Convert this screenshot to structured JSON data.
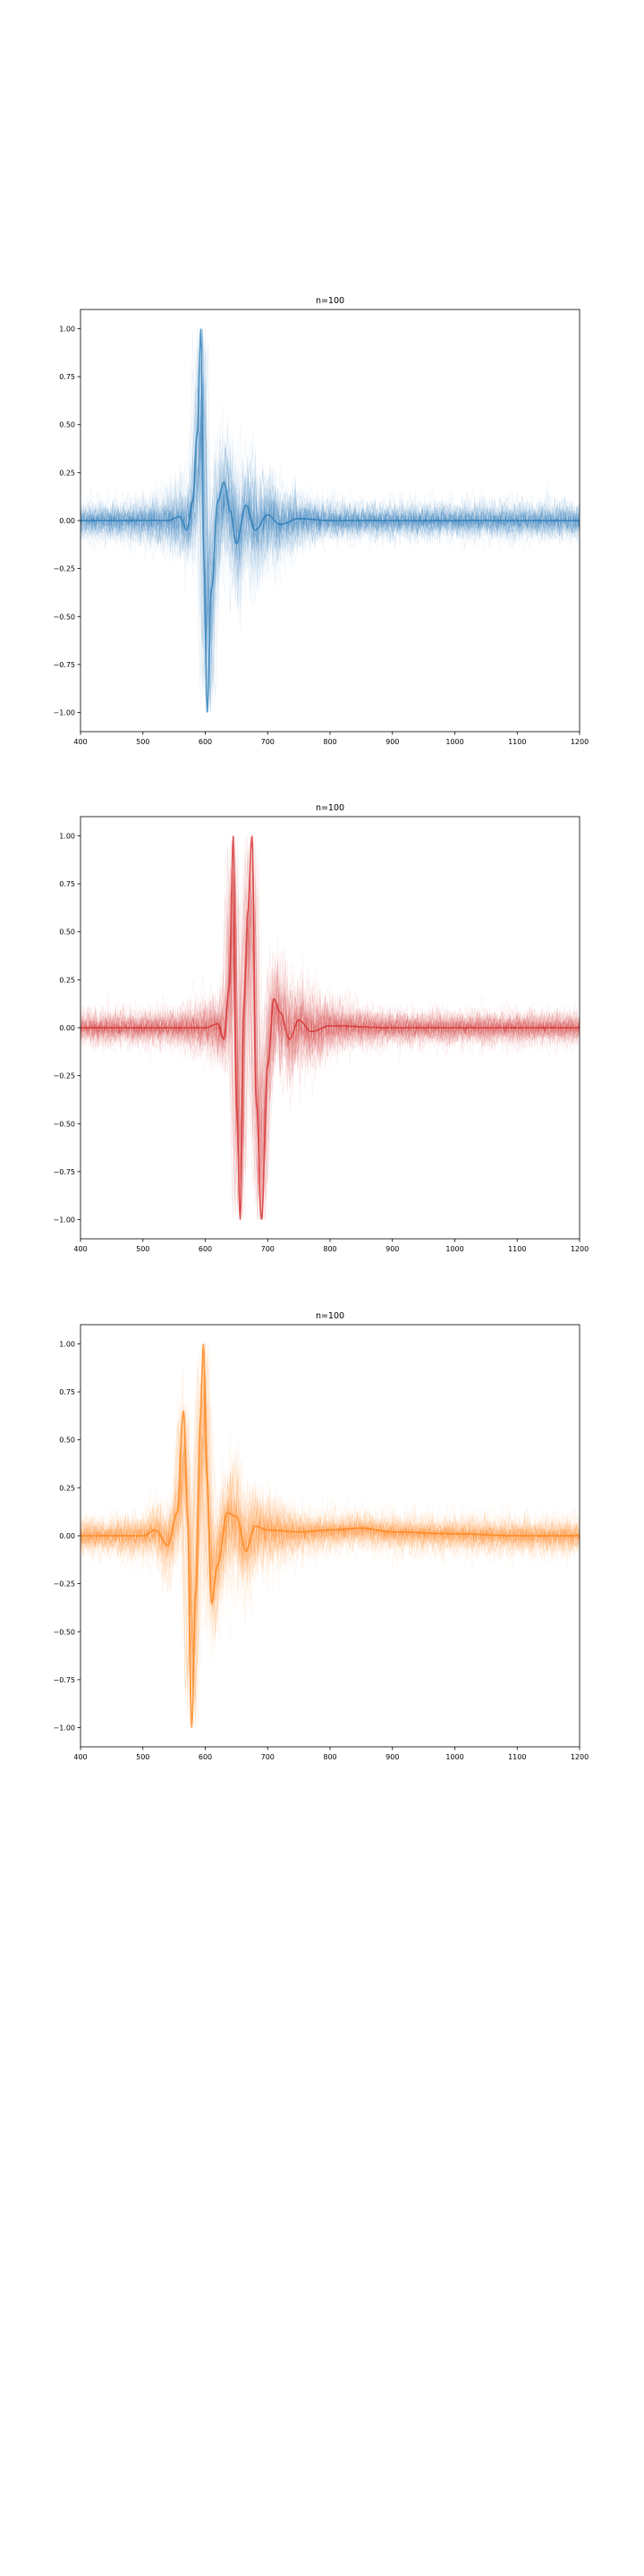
{
  "chart_data": [
    {
      "type": "line",
      "title": "n=100",
      "xlabel": "",
      "ylabel": "",
      "xlim": [
        400,
        1200
      ],
      "ylim": [
        -1.1,
        1.1
      ],
      "xticks": [
        400,
        500,
        600,
        700,
        800,
        900,
        1000,
        1100,
        1200
      ],
      "yticks": [
        -1.0,
        -0.75,
        -0.5,
        -0.25,
        0.0,
        0.25,
        0.5,
        0.75,
        1.0
      ],
      "ytick_labels": [
        "−1.00",
        "−0.75",
        "−0.50",
        "−0.25",
        "0.00",
        "0.25",
        "0.50",
        "0.75",
        "1.00"
      ],
      "color": "#1f77b4",
      "n_traces": 100,
      "median_waveform": {
        "x": [
          400,
          540,
          560,
          570,
          580,
          587,
          593,
          598,
          603,
          610,
          620,
          630,
          640,
          650,
          665,
          680,
          700,
          720,
          750,
          800,
          900,
          1000,
          1100,
          1200
        ],
        "y": [
          0.0,
          0.0,
          0.02,
          -0.05,
          0.1,
          0.45,
          1.0,
          -0.2,
          -1.0,
          -0.35,
          0.1,
          0.2,
          0.05,
          -0.12,
          0.08,
          -0.05,
          0.03,
          -0.02,
          0.01,
          0.0,
          0.0,
          0.0,
          0.0,
          0.0
        ]
      },
      "grid": false,
      "legend": "none"
    },
    {
      "type": "line",
      "title": "n=100",
      "xlabel": "",
      "ylabel": "",
      "xlim": [
        400,
        1200
      ],
      "ylim": [
        -1.1,
        1.1
      ],
      "xticks": [
        400,
        500,
        600,
        700,
        800,
        900,
        1000,
        1100,
        1200
      ],
      "yticks": [
        -1.0,
        -0.75,
        -0.5,
        -0.25,
        0.0,
        0.25,
        0.5,
        0.75,
        1.0
      ],
      "ytick_labels": [
        "−1.00",
        "−0.75",
        "−0.50",
        "−0.25",
        "0.00",
        "0.25",
        "0.50",
        "0.75",
        "1.00"
      ],
      "color": "#d62728",
      "n_traces": 100,
      "median_waveform": {
        "x": [
          400,
          600,
          620,
          630,
          638,
          645,
          650,
          656,
          662,
          668,
          675,
          682,
          690,
          700,
          710,
          720,
          735,
          750,
          770,
          800,
          900,
          1000,
          1100,
          1200
        ],
        "y": [
          0.0,
          0.0,
          0.02,
          -0.06,
          0.2,
          1.0,
          -0.4,
          -1.0,
          0.1,
          0.6,
          1.0,
          -0.4,
          -1.0,
          -0.2,
          0.15,
          0.08,
          -0.06,
          0.04,
          -0.02,
          0.01,
          0.0,
          0.0,
          0.0,
          0.0
        ]
      },
      "grid": false,
      "legend": "none"
    },
    {
      "type": "line",
      "title": "n=100",
      "xlabel": "",
      "ylabel": "",
      "xlim": [
        400,
        1200
      ],
      "ylim": [
        -1.1,
        1.1
      ],
      "xticks": [
        400,
        500,
        600,
        700,
        800,
        900,
        1000,
        1100,
        1200
      ],
      "yticks": [
        -1.0,
        -0.75,
        -0.5,
        -0.25,
        0.0,
        0.25,
        0.5,
        0.75,
        1.0
      ],
      "ytick_labels": [
        "−1.00",
        "−0.75",
        "−0.50",
        "−0.25",
        "0.00",
        "0.25",
        "0.50",
        "0.75",
        "1.00"
      ],
      "color": "#ff7f0e",
      "n_traces": 100,
      "median_waveform": {
        "x": [
          400,
          500,
          520,
          540,
          555,
          565,
          572,
          578,
          585,
          592,
          597,
          603,
          610,
          620,
          635,
          650,
          665,
          680,
          700,
          750,
          800,
          850,
          900,
          1000,
          1100,
          1200
        ],
        "y": [
          0.0,
          0.0,
          0.03,
          -0.05,
          0.12,
          0.65,
          0.1,
          -1.0,
          -0.3,
          0.6,
          1.0,
          0.3,
          -0.35,
          -0.15,
          0.12,
          0.1,
          -0.08,
          0.05,
          0.03,
          0.02,
          0.03,
          0.04,
          0.02,
          0.01,
          0.0,
          0.0
        ]
      },
      "grid": false,
      "legend": "none"
    }
  ]
}
